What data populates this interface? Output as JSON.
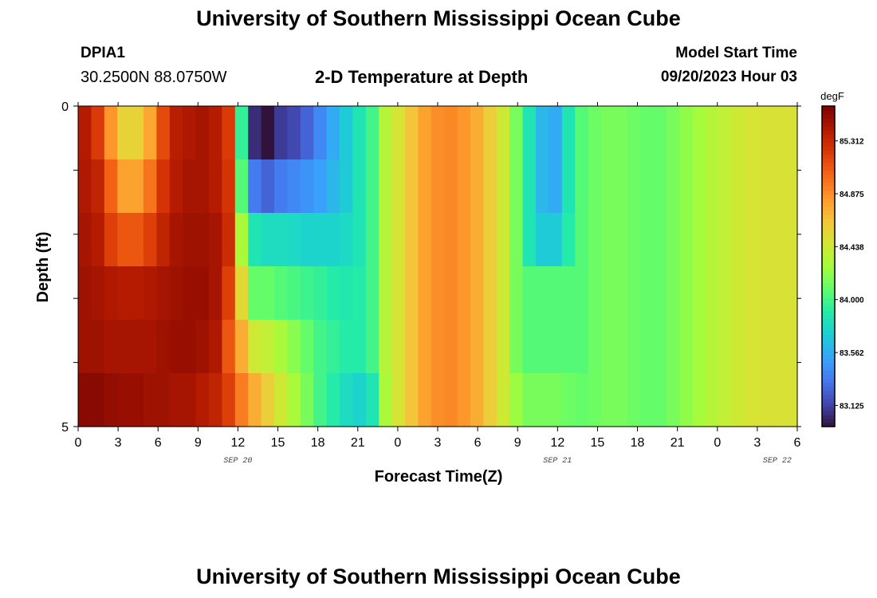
{
  "header": {
    "title": "University of Southern Mississippi Ocean Cube",
    "station": "DPIA1",
    "coordinates": "30.2500N  88.0750W",
    "model_start_label": "Model Start Time",
    "model_start_time": "09/20/2023 Hour 03"
  },
  "footer": {
    "title": "University of Southern Mississippi Ocean Cube"
  },
  "chart_data": {
    "type": "heatmap",
    "title": "2-D Temperature at Depth",
    "xlabel": "Forecast Time(Z)",
    "ylabel": "Depth (ft)",
    "colorbar_label": "degF",
    "x_ticks": [
      "0",
      "3",
      "6",
      "9",
      "12",
      "15",
      "18",
      "21",
      "0",
      "3",
      "6",
      "9",
      "12",
      "15",
      "18",
      "21",
      "0",
      "3",
      "6"
    ],
    "date_labels": [
      "SEP 20",
      "SEP 21",
      "SEP 22"
    ],
    "y_ticks": [
      "0",
      "5"
    ],
    "ylim": [
      0,
      5
    ],
    "colorbar_ticks": [
      "85.312",
      "84.875",
      "84.438",
      "84.000",
      "83.562",
      "83.125"
    ],
    "color_range": [
      82.95,
      85.6
    ],
    "x_hours": [
      0,
      1,
      2,
      3,
      4,
      5,
      6,
      7,
      8,
      9,
      10,
      11,
      12,
      13,
      14,
      15,
      16,
      17,
      18,
      19,
      20,
      21,
      22,
      23,
      24,
      25,
      26,
      27,
      28,
      29,
      30,
      31,
      32,
      33,
      34,
      35,
      36,
      37,
      38,
      39,
      40,
      41,
      42,
      43,
      44,
      45,
      46,
      47,
      48,
      49,
      50,
      51,
      52,
      53,
      54
    ],
    "depth_rows": [
      0,
      1,
      2,
      3,
      4,
      5
    ],
    "values": [
      [
        85.4,
        85.22,
        84.85,
        84.58,
        84.58,
        84.78,
        85.15,
        85.38,
        85.42,
        85.45,
        85.4,
        85.22,
        83.95,
        83.05,
        82.95,
        83.1,
        83.15,
        83.25,
        83.4,
        83.55,
        83.7,
        83.85,
        84.0,
        84.35,
        84.48,
        84.65,
        84.8,
        84.88,
        84.9,
        84.85,
        84.75,
        84.6,
        84.45,
        84.15,
        83.85,
        83.6,
        83.55,
        83.85,
        84.05,
        84.12,
        84.15,
        84.15,
        84.12,
        84.1,
        84.1,
        84.15,
        84.22,
        84.28,
        84.35,
        84.4,
        84.45,
        84.48,
        84.5,
        84.5,
        84.5
      ],
      [
        85.42,
        85.35,
        85.05,
        84.8,
        84.8,
        84.98,
        85.25,
        85.4,
        85.45,
        85.45,
        85.4,
        85.25,
        84.05,
        83.35,
        83.25,
        83.35,
        83.4,
        83.45,
        83.5,
        83.6,
        83.7,
        83.85,
        84.0,
        84.35,
        84.48,
        84.65,
        84.8,
        84.88,
        84.9,
        84.85,
        84.75,
        84.6,
        84.45,
        84.15,
        83.85,
        83.6,
        83.55,
        83.85,
        84.05,
        84.12,
        84.15,
        84.15,
        84.12,
        84.1,
        84.1,
        84.15,
        84.22,
        84.28,
        84.35,
        84.4,
        84.45,
        84.48,
        84.5,
        84.5,
        84.5
      ],
      [
        85.45,
        85.4,
        85.2,
        85.1,
        85.1,
        85.2,
        85.35,
        85.45,
        85.48,
        85.48,
        85.45,
        85.3,
        84.3,
        83.85,
        83.8,
        83.8,
        83.78,
        83.75,
        83.75,
        83.75,
        83.78,
        83.85,
        84.0,
        84.35,
        84.48,
        84.65,
        84.8,
        84.88,
        84.9,
        84.85,
        84.75,
        84.6,
        84.45,
        84.15,
        83.85,
        83.7,
        83.7,
        83.9,
        84.05,
        84.12,
        84.15,
        84.15,
        84.12,
        84.1,
        84.1,
        84.15,
        84.22,
        84.28,
        84.35,
        84.4,
        84.45,
        84.48,
        84.5,
        84.5,
        84.5
      ],
      [
        85.48,
        85.45,
        85.42,
        85.4,
        85.4,
        85.42,
        85.45,
        85.48,
        85.5,
        85.5,
        85.45,
        85.2,
        84.55,
        84.1,
        84.1,
        84.05,
        84.02,
        83.98,
        83.95,
        83.9,
        83.88,
        83.9,
        84.0,
        84.35,
        84.48,
        84.65,
        84.8,
        84.88,
        84.9,
        84.85,
        84.75,
        84.6,
        84.45,
        84.15,
        84.05,
        84.05,
        84.05,
        84.05,
        84.05,
        84.12,
        84.15,
        84.15,
        84.12,
        84.1,
        84.1,
        84.15,
        84.22,
        84.28,
        84.35,
        84.4,
        84.45,
        84.48,
        84.5,
        84.5,
        84.5
      ],
      [
        85.48,
        85.48,
        85.45,
        85.45,
        85.45,
        85.45,
        85.48,
        85.5,
        85.5,
        85.48,
        85.42,
        85.1,
        84.75,
        84.45,
        84.4,
        84.3,
        84.2,
        84.1,
        84.0,
        83.95,
        83.9,
        83.9,
        84.0,
        84.35,
        84.48,
        84.65,
        84.8,
        84.88,
        84.9,
        84.85,
        84.75,
        84.6,
        84.45,
        84.15,
        84.05,
        84.05,
        84.05,
        84.05,
        84.05,
        84.12,
        84.15,
        84.15,
        84.12,
        84.1,
        84.1,
        84.15,
        84.22,
        84.28,
        84.35,
        84.4,
        84.45,
        84.48,
        84.5,
        84.5,
        84.5
      ],
      [
        85.55,
        85.55,
        85.52,
        85.5,
        85.5,
        85.48,
        85.48,
        85.45,
        85.45,
        85.4,
        85.35,
        85.2,
        84.95,
        84.75,
        84.6,
        84.45,
        84.3,
        84.15,
        84.0,
        83.9,
        83.8,
        83.75,
        83.85,
        84.3,
        84.48,
        84.65,
        84.8,
        84.88,
        84.9,
        84.85,
        84.75,
        84.6,
        84.45,
        84.25,
        84.15,
        84.15,
        84.15,
        84.12,
        84.1,
        84.12,
        84.15,
        84.15,
        84.12,
        84.1,
        84.1,
        84.15,
        84.22,
        84.28,
        84.35,
        84.4,
        84.45,
        84.48,
        84.5,
        84.5,
        84.5
      ]
    ]
  }
}
